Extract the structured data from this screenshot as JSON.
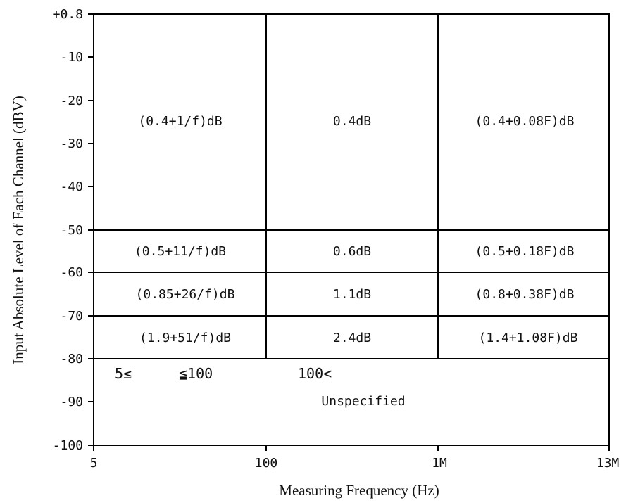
{
  "y_axis": {
    "title": "Input Absolute Level of Each Channel (dBV)",
    "ticks": [
      "+0.8",
      "-10",
      "-20",
      "-30",
      "-40",
      "-50",
      "-60",
      "-70",
      "-80",
      "-90",
      "-100"
    ]
  },
  "x_axis": {
    "title": "Measuring Frequency (Hz)",
    "ticks": [
      "5",
      "100",
      "1M",
      "13M"
    ]
  },
  "rows": [
    {
      "range_dbv": "+0.8 to -50",
      "cells": [
        "(0.4+1/f)dB",
        "0.4dB",
        "(0.4+0.08F)dB"
      ]
    },
    {
      "range_dbv": "-50 to -60",
      "cells": [
        "(0.5+11/f)dB",
        "0.6dB",
        "(0.5+0.18F)dB"
      ]
    },
    {
      "range_dbv": "-60 to -70",
      "cells": [
        "(0.85+26/f)dB",
        "1.1dB",
        "(0.8+0.38F)dB"
      ]
    },
    {
      "range_dbv": "-70 to -80",
      "cells": [
        "(1.9+51/f)dB",
        "2.4dB",
        "(1.4+1.08F)dB"
      ]
    }
  ],
  "bottom_region": {
    "range_label_low": "5≤",
    "range_label_high": "≦100",
    "range_label_mid": "100<",
    "note": "Unspecified"
  },
  "colors": {
    "line": "#000000",
    "text": "#111111",
    "background": "#ffffff"
  }
}
